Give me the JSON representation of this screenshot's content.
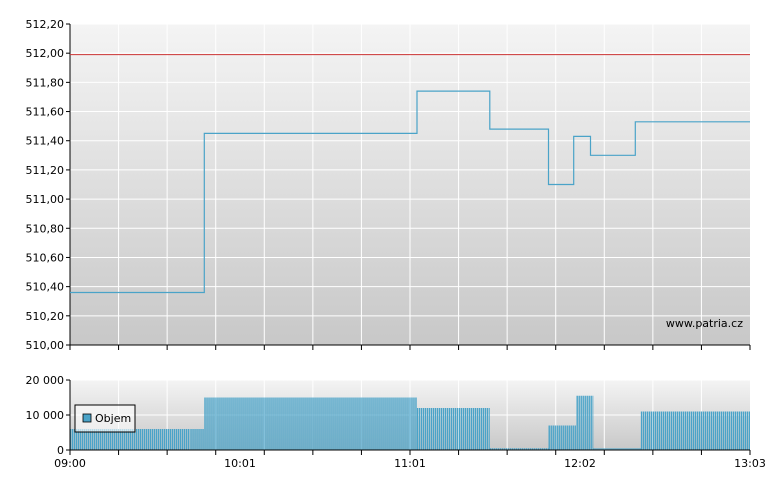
{
  "chart_data": [
    {
      "type": "line",
      "ylim": [
        510.0,
        512.2
      ],
      "y_ticks": [
        "510,00",
        "510,20",
        "510,40",
        "510,60",
        "510,80",
        "511,00",
        "511,20",
        "511,40",
        "511,60",
        "511,80",
        "512,00",
        "512,20"
      ],
      "y_tick_values": [
        510.0,
        510.2,
        510.4,
        510.6,
        510.8,
        511.0,
        511.2,
        511.4,
        511.6,
        511.8,
        512.0,
        512.2
      ],
      "reference_line": {
        "value": 511.99,
        "color": "#cc3333"
      },
      "series": [
        {
          "color": "#4aa3c8",
          "x": [
            "09:00",
            "09:48",
            "09:48",
            "11:04",
            "11:04",
            "11:30",
            "11:30",
            "11:51",
            "11:51",
            "12:00",
            "12:00",
            "12:06",
            "12:06",
            "12:22",
            "12:22",
            "13:03"
          ],
          "values": [
            510.36,
            510.36,
            511.45,
            511.45,
            511.74,
            511.74,
            511.48,
            511.48,
            511.1,
            511.1,
            511.43,
            511.43,
            511.3,
            511.3,
            511.53,
            511.53
          ]
        }
      ],
      "grid": true,
      "watermark": "www.patria.cz"
    },
    {
      "type": "bar",
      "ylim": [
        0,
        20000
      ],
      "y_ticks": [
        "0",
        "10 000",
        "20 000"
      ],
      "y_tick_values": [
        0,
        10000,
        20000
      ],
      "x_tick_labels": [
        "09:00",
        "10:01",
        "11:01",
        "12:02",
        "13:03"
      ],
      "series": [
        {
          "name": "Objem",
          "color": "#4aa3c8",
          "segments": [
            {
              "start": "09:00",
              "end": "09:43",
              "value": 6000
            },
            {
              "start": "09:43",
              "end": "09:48",
              "value": 6000
            },
            {
              "start": "09:48",
              "end": "11:04",
              "value": 15000
            },
            {
              "start": "11:04",
              "end": "11:30",
              "value": 12000
            },
            {
              "start": "11:30",
              "end": "11:51",
              "value": 500
            },
            {
              "start": "11:51",
              "end": "12:01",
              "value": 7000
            },
            {
              "start": "12:01",
              "end": "12:07",
              "value": 15500
            },
            {
              "start": "12:07",
              "end": "12:24",
              "value": 500
            },
            {
              "start": "12:24",
              "end": "13:03",
              "value": 11000
            }
          ]
        }
      ],
      "legend": {
        "position": "top-left",
        "label": "Objem"
      },
      "grid": true
    }
  ]
}
